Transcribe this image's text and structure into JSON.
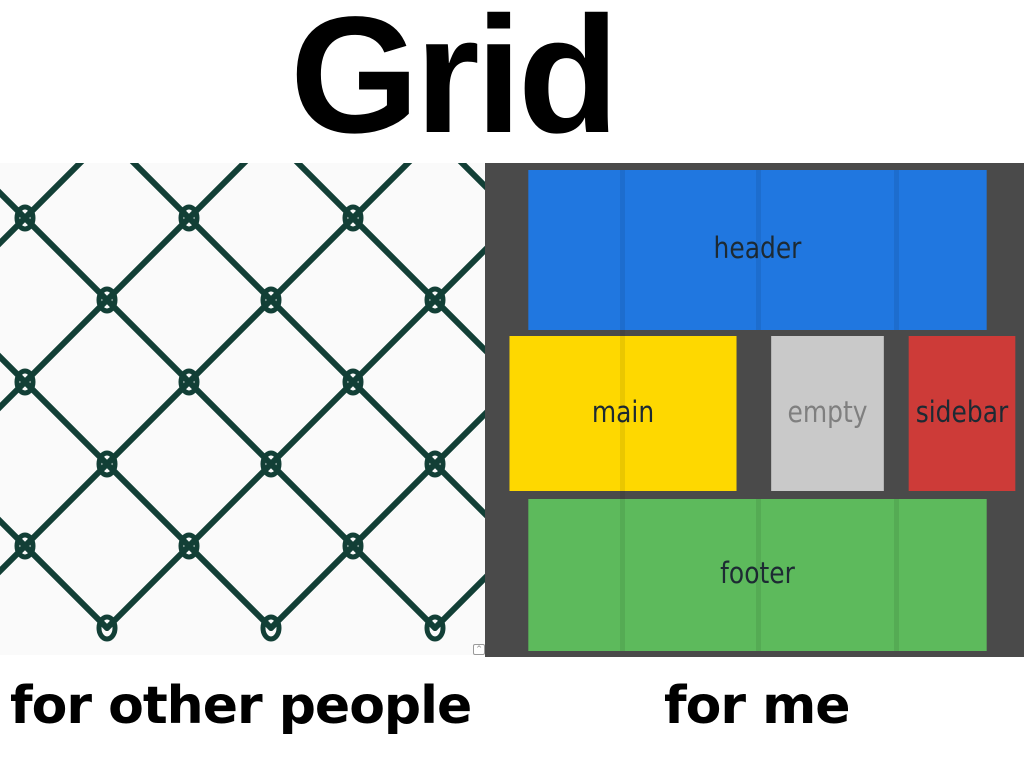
{
  "title": "Grid",
  "captions": {
    "left": "for other people",
    "right": "for me"
  },
  "css_grid": {
    "areas": [
      {
        "key": "header",
        "label": "header",
        "color": "#2077e0"
      },
      {
        "key": "main",
        "label": "main",
        "color": "#fed800"
      },
      {
        "key": "empty",
        "label": "empty",
        "color": "#c9c9c9"
      },
      {
        "key": "sidebar",
        "label": "sidebar",
        "color": "#cd3b38"
      },
      {
        "key": "footer",
        "label": "footer",
        "color": "#5dba5c"
      }
    ],
    "border_color": "#4a4a4a"
  },
  "fence": {
    "wire_color": "#123f36",
    "background": "#fafafa"
  }
}
